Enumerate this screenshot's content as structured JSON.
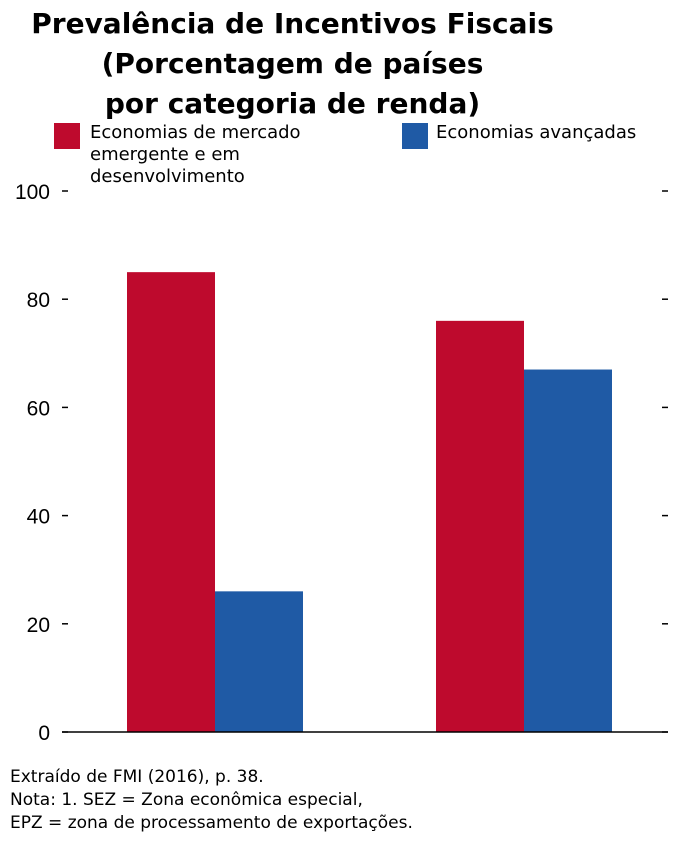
{
  "title_lines": [
    "Prevalência de Incentivos Fiscais",
    "(Porcentagem de países",
    "por categoria de renda)"
  ],
  "colors": {
    "series1": "#be0a2d",
    "series2": "#1f5aa5"
  },
  "chart_data": {
    "type": "bar",
    "title": "Prevalência de Incentivos Fiscais (Porcentagem de países por categoria de renda)",
    "categories": [
      "",
      ""
    ],
    "series": [
      {
        "name": "Economias de mercado emergente e em desenvolvimento",
        "values": [
          85,
          76
        ]
      },
      {
        "name": "Economias avançadas",
        "values": [
          26,
          67
        ]
      }
    ],
    "ylim": [
      0,
      100
    ],
    "yticks": [
      0,
      20,
      40,
      60,
      80,
      100
    ],
    "xlabel": "",
    "ylabel": "",
    "legend": "top"
  },
  "legend": {
    "series1_lines": [
      "Economias de mercado",
      "emergente e em",
      "desenvolvimento"
    ],
    "series2_lines": [
      "Economias avançadas"
    ]
  },
  "notes": [
    "Extraído de FMI (2016), p. 38.",
    "Nota: 1. SEZ = Zona econômica especial,",
    "EPZ = zona de processamento de exportações."
  ]
}
